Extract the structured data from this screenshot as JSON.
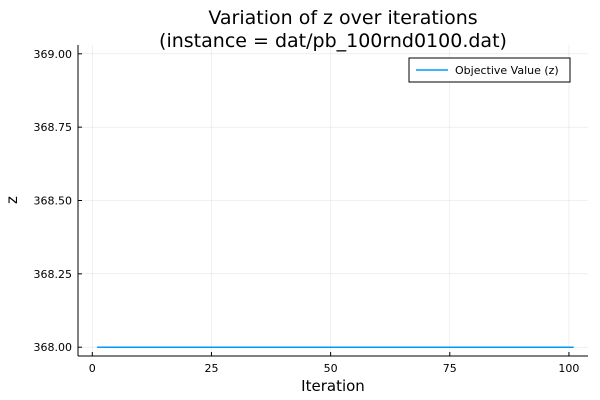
{
  "chart_data": {
    "type": "line",
    "title": "Variation of z over iterations",
    "subtitle": "(instance = dat/pb_100rnd0100.dat)",
    "xlabel": "Iteration",
    "ylabel": "z",
    "xlim": [
      -3,
      104
    ],
    "ylim": [
      367.97,
      369.03
    ],
    "xticks": [
      0,
      25,
      50,
      75,
      100
    ],
    "yticks": [
      368.0,
      368.25,
      368.5,
      368.75,
      369.0
    ],
    "ytick_labels": [
      "368.00",
      "368.25",
      "368.50",
      "368.75",
      "369.00"
    ],
    "grid": true,
    "legend_position": "top-right",
    "series": [
      {
        "name": "Objective Value (z)",
        "color": "#009AFA",
        "x": [
          1,
          101
        ],
        "y": [
          368,
          368
        ]
      }
    ]
  }
}
